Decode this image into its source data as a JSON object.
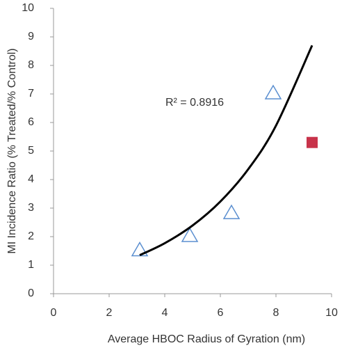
{
  "chart_data": {
    "type": "scatter",
    "x_label": "Average HBOC Radius of Gyration (nm)",
    "y_label": "MI Incidence Ratio (% Treated/% Control)",
    "annotation": "R² = 0.8916",
    "xlim": [
      0,
      10
    ],
    "ylim": [
      0,
      10
    ],
    "xticks": [
      0,
      2,
      4,
      6,
      8,
      10
    ],
    "yticks": [
      0,
      1,
      2,
      3,
      4,
      5,
      6,
      7,
      8,
      9,
      10
    ],
    "series": [
      {
        "x": [
          3.1,
          4.9,
          6.4,
          7.9
        ],
        "values": [
          1.55,
          2.05,
          2.85,
          7.05
        ],
        "color": "#5b8fd0",
        "marker": "triangle"
      },
      {
        "x": [
          9.3
        ],
        "values": [
          5.3
        ],
        "color": "#c8334a",
        "marker": "square"
      },
      {
        "x": [
          3.1,
          4,
          5,
          6,
          7,
          8,
          9.3
        ],
        "values": [
          1.35,
          1.77,
          2.39,
          3.23,
          4.36,
          5.89,
          8.7
        ],
        "color": "#000000",
        "marker": "line"
      }
    ]
  }
}
